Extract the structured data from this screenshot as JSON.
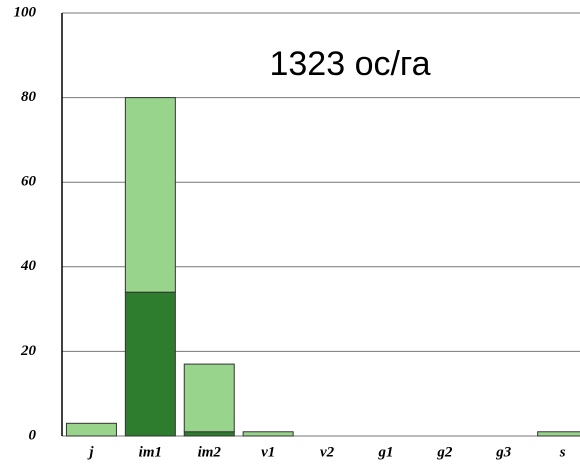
{
  "chart_data": {
    "type": "bar",
    "stacked": true,
    "annotation": "1323 ос/га",
    "categories": [
      "j",
      "im1",
      "im2",
      "v1",
      "v2",
      "g1",
      "g2",
      "g3",
      "s"
    ],
    "series": [
      {
        "color": "#2e7d2e",
        "values": [
          0,
          34,
          1,
          0,
          0,
          0,
          0,
          0,
          0
        ]
      },
      {
        "color": "#98d48c",
        "values": [
          3,
          46,
          16,
          1,
          0,
          0,
          0,
          0,
          1
        ]
      }
    ],
    "ylim": [
      0,
      100
    ],
    "yticks": [
      0,
      20,
      40,
      60,
      80,
      100
    ],
    "grid": true
  }
}
